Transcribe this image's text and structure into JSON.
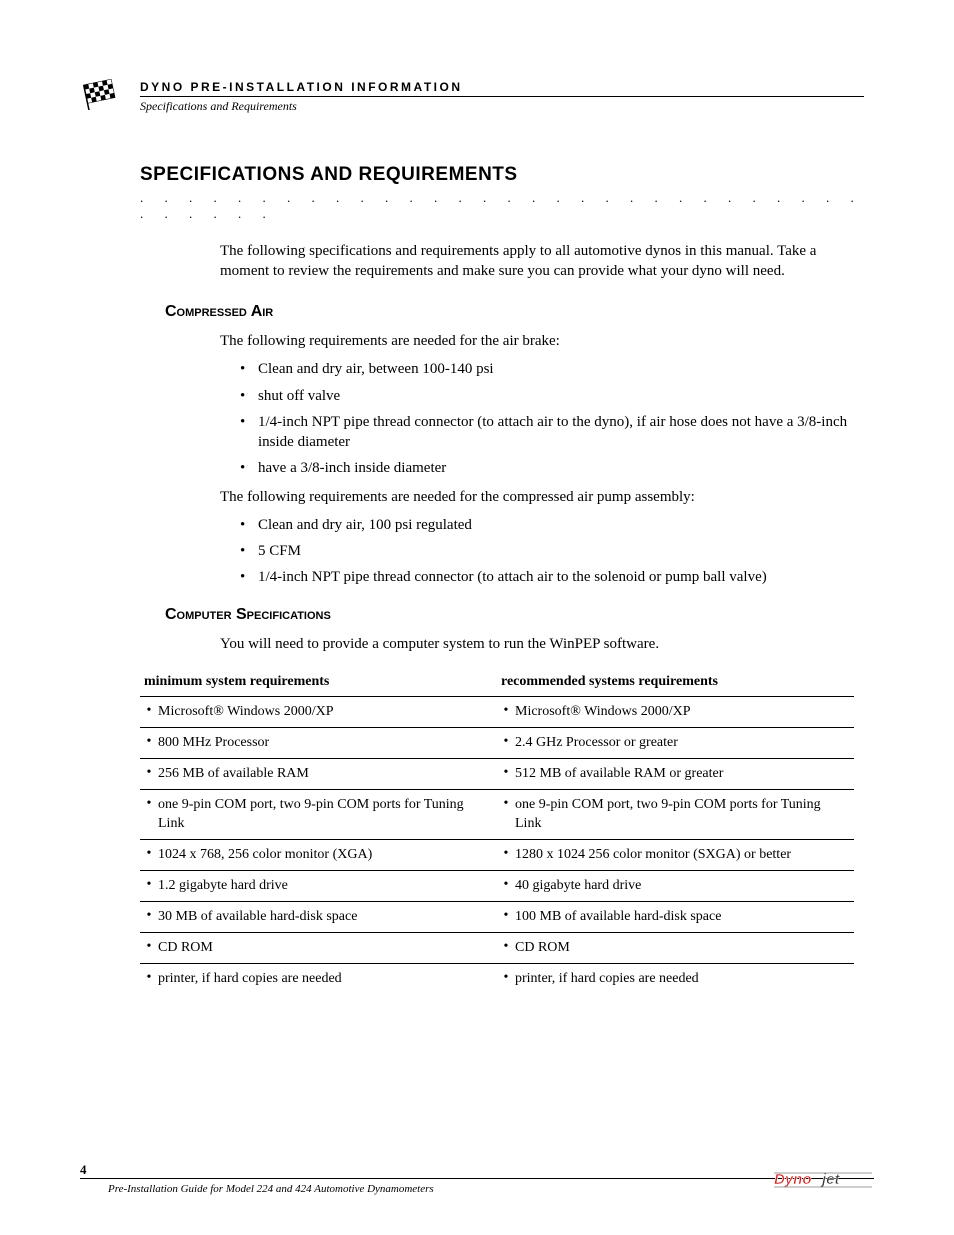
{
  "header": {
    "label": "DYNO PRE-INSTALLATION INFORMATION",
    "sub": "Specifications and Requirements"
  },
  "main_heading": "SPECIFICATIONS AND REQUIREMENTS",
  "dot_row": ". . . . . . . . . . . . . . . . . . . . . . . . . . . . . . . . . . . .",
  "intro": "The following specifications and requirements apply to all automotive dynos in this manual. Take a moment to review the requirements and make sure you can provide what your dyno will need.",
  "compressed_air": {
    "heading": "Compressed Air",
    "para1": "The following requirements are needed for the air brake:",
    "list1": [
      "Clean and dry air, between 100-140 psi",
      "shut off valve",
      "1/4-inch NPT pipe thread connector (to attach air to the dyno), if air hose does not have a 3/8-inch inside diameter",
      "have a 3/8-inch inside diameter"
    ],
    "para2": "The following requirements are needed for the compressed air pump assembly:",
    "list2": [
      "Clean and dry air, 100 psi regulated",
      "5 CFM",
      "1/4-inch NPT pipe thread connector (to attach air to the solenoid or pump ball valve)"
    ]
  },
  "computer_specs": {
    "heading": "Computer Specifications",
    "para": "You will need to provide a computer system to run the WinPEP software.",
    "columns": [
      "minimum system requirements",
      "recommended systems requirements"
    ],
    "rows": [
      [
        "Microsoft® Windows 2000/XP",
        "Microsoft® Windows 2000/XP"
      ],
      [
        "800 MHz Processor",
        "2.4 GHz Processor or greater"
      ],
      [
        "256 MB of available RAM",
        "512 MB of available RAM or greater"
      ],
      [
        "one 9-pin COM port, two 9-pin COM ports for Tuning Link",
        "one 9-pin COM port, two 9-pin COM ports for Tuning Link"
      ],
      [
        "1024 x 768, 256 color monitor (XGA)",
        "1280 x 1024 256 color monitor (SXGA) or better"
      ],
      [
        "1.2 gigabyte hard drive",
        "40 gigabyte hard drive"
      ],
      [
        "30 MB of available hard-disk space",
        "100 MB of available hard-disk space"
      ],
      [
        "CD ROM",
        "CD ROM"
      ],
      [
        "printer, if hard copies are needed",
        "printer, if hard copies are needed"
      ]
    ]
  },
  "footer": {
    "page": "4",
    "title": "Pre-Installation Guide for Model 224 and 424 Automotive Dynamometers"
  },
  "colors": {
    "text": "#000000",
    "background": "#ffffff",
    "logo_red": "#d8201f",
    "logo_dark": "#3a3a3a"
  }
}
